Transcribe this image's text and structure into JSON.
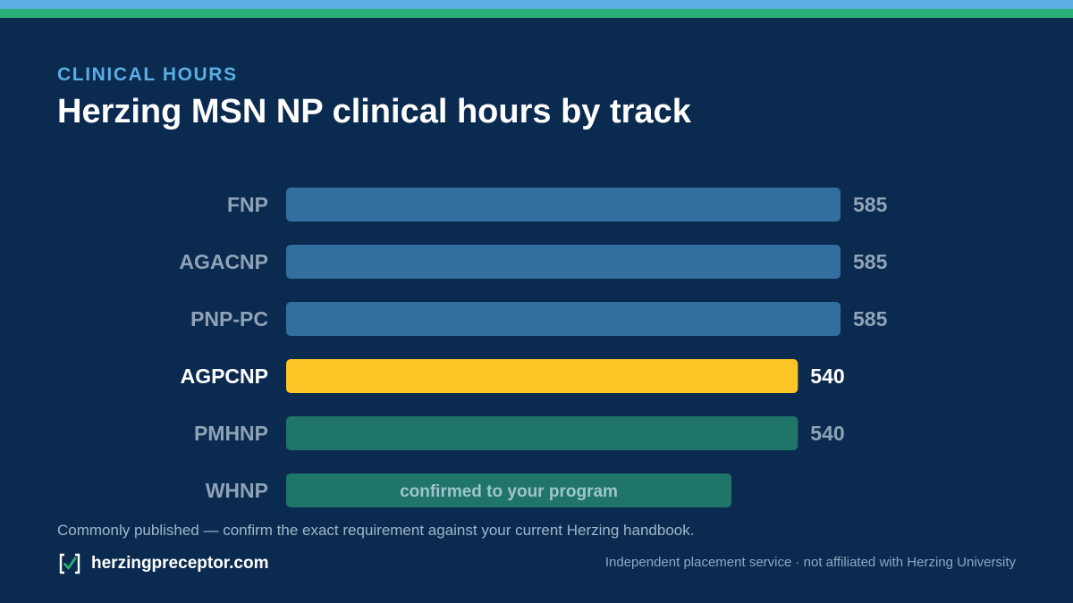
{
  "header": {
    "eyebrow": "CLINICAL HOURS",
    "title": "Herzing MSN NP clinical hours by track"
  },
  "colors": {
    "background": "#0b2a4f",
    "accent_blue": "#5aaee3",
    "accent_green": "#2bb07a",
    "bar_blue": "#336f9e",
    "bar_highlight": "#fec526",
    "bar_green": "#1f7568"
  },
  "chart_data": {
    "type": "bar",
    "orientation": "horizontal",
    "title": "Herzing MSN NP clinical hours by track",
    "xlabel": "",
    "ylabel": "",
    "grid": false,
    "xlim": [
      0,
      585
    ],
    "categories": [
      "FNP",
      "AGACNP",
      "PNP-PC",
      "AGPCNP",
      "PMHNP",
      "WHNP"
    ],
    "values": [
      585,
      585,
      585,
      540,
      540,
      null
    ],
    "value_labels": [
      "585",
      "585",
      "585",
      "540",
      "540",
      ""
    ],
    "bar_colors": [
      "#336f9e",
      "#336f9e",
      "#336f9e",
      "#fec526",
      "#1f7568",
      "#1f7568"
    ],
    "highlight_index": 3,
    "annotations": [
      {
        "category": "WHNP",
        "text": "confirmed to your program"
      }
    ]
  },
  "footnote": "Commonly published — confirm the exact requirement against your current Herzing handbook.",
  "footer": {
    "brand_icon": "checkbox-icon",
    "brand": "herzingpreceptor.com",
    "disclaimer": "Independent placement service · not affiliated with Herzing University"
  }
}
